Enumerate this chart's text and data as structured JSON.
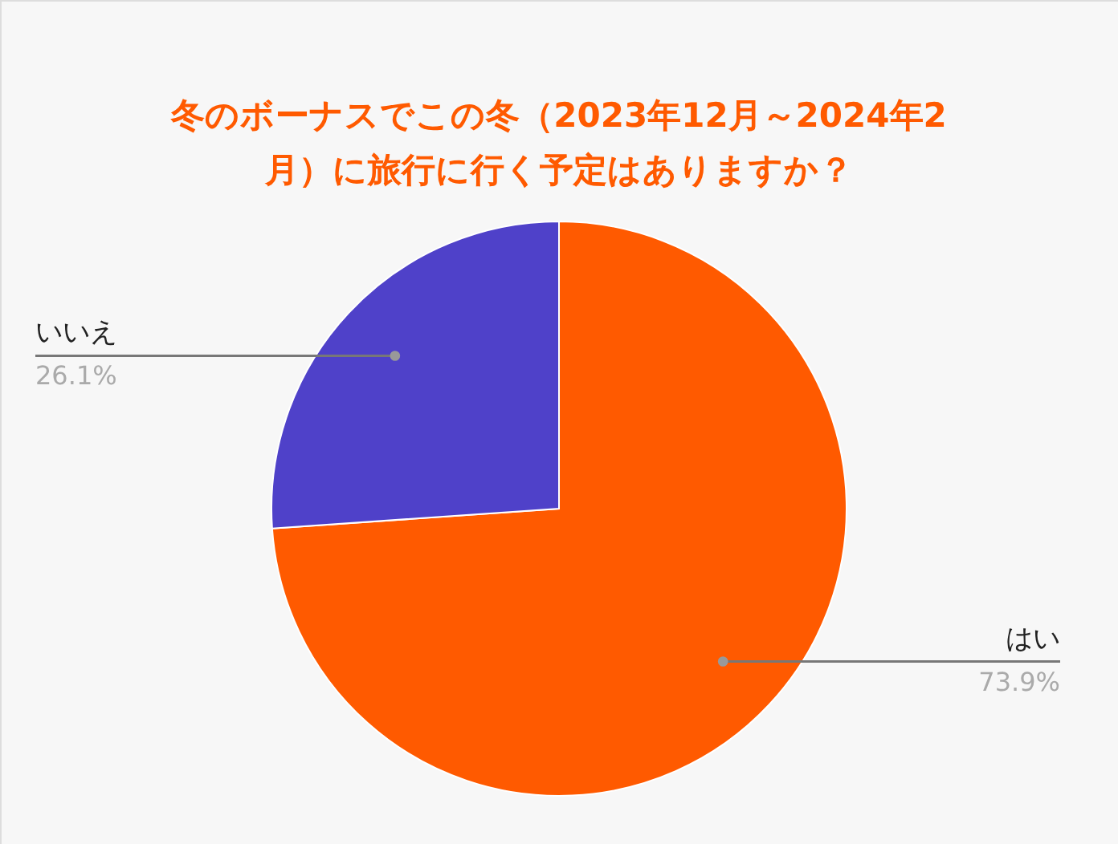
{
  "chart_data": {
    "type": "pie",
    "title": "冬のボーナスでこの冬（2023年12月～2024年2月）に旅行に行く予定はありますか？",
    "categories": [
      "はい",
      "いいえ"
    ],
    "values": [
      73.9,
      26.1
    ],
    "value_labels": [
      "73.9%",
      "26.1%"
    ],
    "colors": [
      "#ff5a00",
      "#4f41c9"
    ]
  }
}
